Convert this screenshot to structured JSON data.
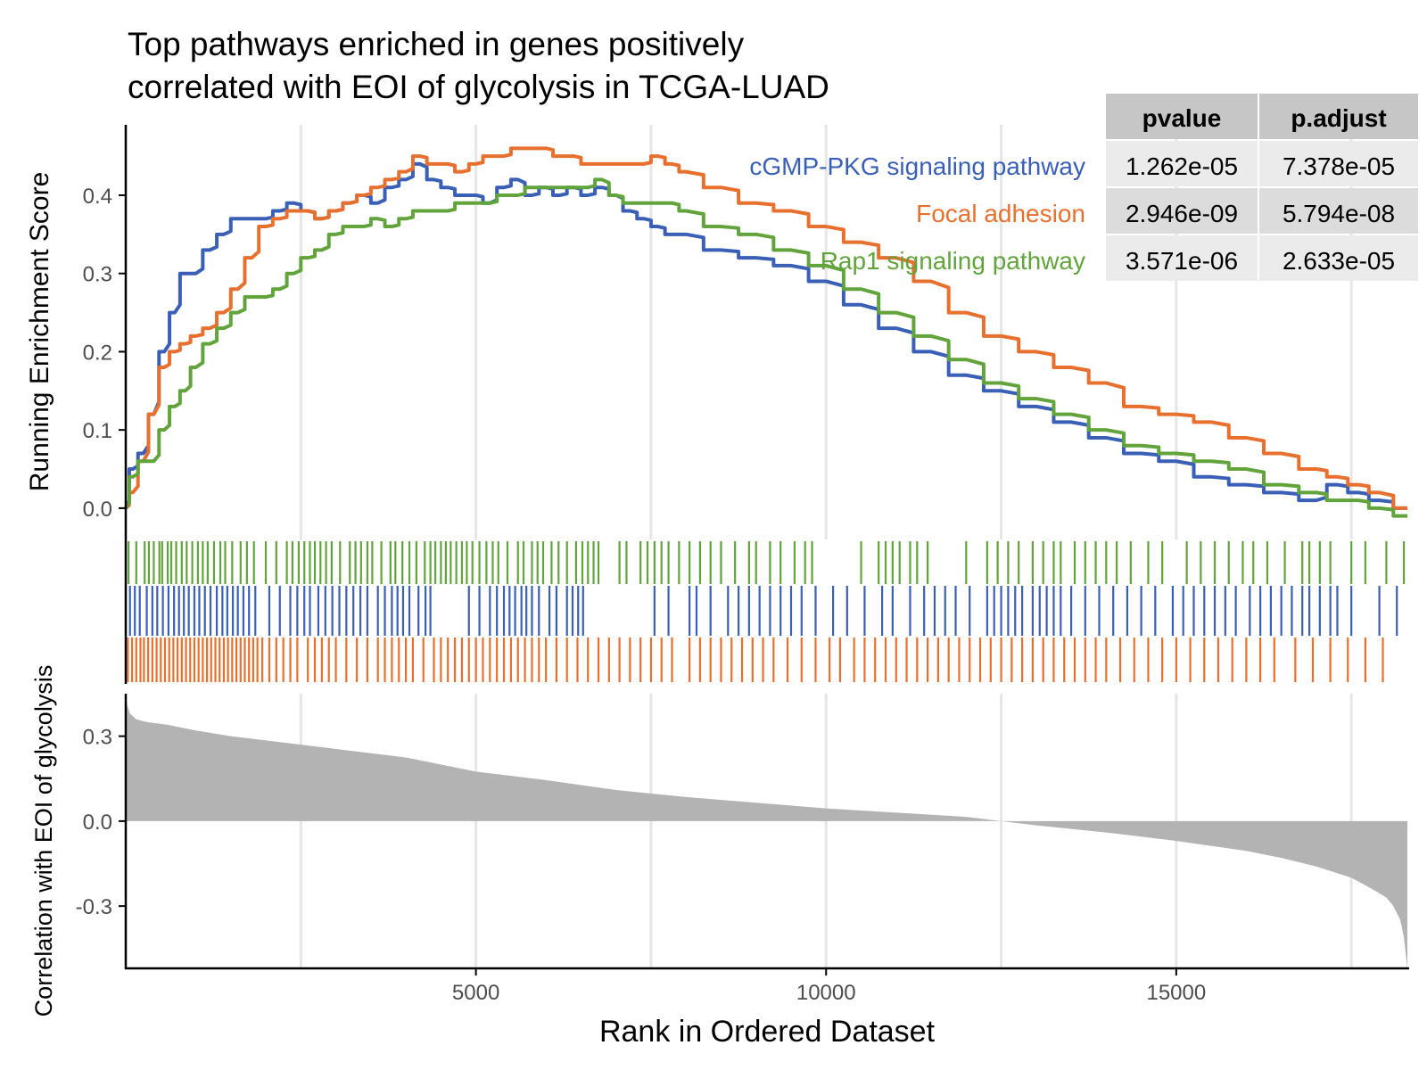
{
  "title_lines": [
    "Top pathways enriched in genes positively",
    "correlated with EOI of glycolysis in TCGA-LUAD"
  ],
  "colors": {
    "cGMP-PKG signaling pathway": "#3a5fb7",
    "Focal adhesion": "#e8702f",
    "Rap1 signaling pathway": "#62a43c",
    "ranked_fill": "#b3b3b3",
    "grid": "#e6e6e6"
  },
  "table": {
    "headers": [
      "pvalue",
      "p.adjust"
    ],
    "rows": [
      {
        "pathway": "cGMP-PKG signaling pathway",
        "pvalue": "1.262e-05",
        "p.adjust": "7.378e-05"
      },
      {
        "pathway": "Focal adhesion",
        "pvalue": "2.946e-09",
        "p.adjust": "5.794e-08"
      },
      {
        "pathway": "Rap1 signaling pathway",
        "pvalue": "3.571e-06",
        "p.adjust": "2.633e-05"
      }
    ]
  },
  "chart_data": [
    {
      "type": "line",
      "ylabel": "Running Enrichment Score",
      "xlim": [
        0,
        18300
      ],
      "ylim": [
        -0.04,
        0.49
      ],
      "y_ticks": [
        "0.0",
        "0.1",
        "0.2",
        "0.3",
        "0.4"
      ],
      "grid": "vertical",
      "series": [
        {
          "name": "cGMP-PKG signaling pathway",
          "x": [
            0,
            100,
            250,
            400,
            550,
            700,
            850,
            1000,
            1200,
            1400,
            1600,
            1800,
            2000,
            2200,
            2400,
            2600,
            2800,
            3000,
            3200,
            3400,
            3600,
            3800,
            4000,
            4200,
            4400,
            4600,
            4800,
            5000,
            5200,
            5400,
            5600,
            5800,
            6000,
            6200,
            6400,
            6600,
            6800,
            7000,
            7200,
            7400,
            7600,
            7800,
            8000,
            8500,
            9000,
            9500,
            10000,
            10500,
            11000,
            11500,
            12000,
            12500,
            13000,
            13500,
            14000,
            14500,
            15000,
            15500,
            16000,
            16500,
            17000,
            17300,
            17600,
            17900,
            18300
          ],
          "y": [
            0.0,
            0.05,
            0.07,
            0.12,
            0.2,
            0.25,
            0.3,
            0.3,
            0.33,
            0.35,
            0.37,
            0.37,
            0.37,
            0.38,
            0.39,
            0.38,
            0.37,
            0.38,
            0.39,
            0.4,
            0.39,
            0.41,
            0.42,
            0.44,
            0.42,
            0.41,
            0.4,
            0.4,
            0.39,
            0.41,
            0.42,
            0.4,
            0.41,
            0.4,
            0.41,
            0.4,
            0.41,
            0.4,
            0.38,
            0.37,
            0.36,
            0.35,
            0.35,
            0.33,
            0.32,
            0.31,
            0.29,
            0.26,
            0.23,
            0.2,
            0.17,
            0.15,
            0.13,
            0.11,
            0.09,
            0.07,
            0.06,
            0.04,
            0.03,
            0.02,
            0.01,
            0.03,
            0.02,
            0.01,
            0.0
          ]
        },
        {
          "name": "Focal adhesion",
          "x": [
            0,
            100,
            250,
            400,
            550,
            700,
            850,
            1000,
            1200,
            1400,
            1600,
            1800,
            2000,
            2200,
            2400,
            2600,
            2800,
            3000,
            3200,
            3400,
            3600,
            3800,
            4000,
            4200,
            4400,
            4600,
            4800,
            5000,
            5200,
            5400,
            5600,
            5800,
            6000,
            6200,
            6400,
            6600,
            6800,
            7000,
            7200,
            7400,
            7600,
            7800,
            8000,
            8500,
            9000,
            9500,
            10000,
            10500,
            11000,
            11500,
            12000,
            12500,
            13000,
            13500,
            14000,
            14500,
            15000,
            15500,
            16000,
            16500,
            17000,
            17300,
            17600,
            17900,
            18300
          ],
          "y": [
            0.0,
            0.02,
            0.06,
            0.12,
            0.18,
            0.2,
            0.21,
            0.22,
            0.23,
            0.25,
            0.28,
            0.32,
            0.36,
            0.37,
            0.38,
            0.38,
            0.37,
            0.38,
            0.39,
            0.4,
            0.41,
            0.42,
            0.43,
            0.45,
            0.44,
            0.44,
            0.43,
            0.44,
            0.45,
            0.45,
            0.46,
            0.46,
            0.46,
            0.45,
            0.45,
            0.44,
            0.44,
            0.44,
            0.44,
            0.44,
            0.45,
            0.44,
            0.43,
            0.41,
            0.39,
            0.38,
            0.36,
            0.34,
            0.32,
            0.29,
            0.25,
            0.22,
            0.2,
            0.18,
            0.16,
            0.13,
            0.12,
            0.11,
            0.09,
            0.07,
            0.05,
            0.04,
            0.03,
            0.02,
            0.0
          ]
        },
        {
          "name": "Rap1 signaling pathway",
          "x": [
            0,
            100,
            250,
            400,
            550,
            700,
            850,
            1000,
            1200,
            1400,
            1600,
            1800,
            2000,
            2200,
            2400,
            2600,
            2800,
            3000,
            3200,
            3400,
            3600,
            3800,
            4000,
            4200,
            4400,
            4600,
            4800,
            5000,
            5200,
            5400,
            5600,
            5800,
            6000,
            6200,
            6400,
            6600,
            6800,
            7000,
            7200,
            7400,
            7600,
            7800,
            8000,
            8500,
            9000,
            9500,
            10000,
            10500,
            11000,
            11500,
            12000,
            12500,
            13000,
            13500,
            14000,
            14500,
            15000,
            15500,
            16000,
            16500,
            17000,
            17300,
            17600,
            17900,
            18300
          ],
          "y": [
            0.0,
            0.04,
            0.06,
            0.06,
            0.1,
            0.13,
            0.15,
            0.18,
            0.21,
            0.23,
            0.25,
            0.27,
            0.27,
            0.28,
            0.3,
            0.32,
            0.33,
            0.35,
            0.36,
            0.36,
            0.37,
            0.36,
            0.37,
            0.38,
            0.38,
            0.38,
            0.39,
            0.39,
            0.39,
            0.4,
            0.4,
            0.41,
            0.41,
            0.41,
            0.41,
            0.41,
            0.42,
            0.4,
            0.39,
            0.39,
            0.39,
            0.39,
            0.38,
            0.36,
            0.35,
            0.33,
            0.31,
            0.28,
            0.25,
            0.22,
            0.19,
            0.16,
            0.14,
            0.12,
            0.1,
            0.08,
            0.07,
            0.06,
            0.05,
            0.03,
            0.02,
            0.01,
            0.01,
            0.0,
            -0.01
          ]
        }
      ]
    },
    {
      "type": "rug",
      "series": [
        {
          "name": "Rap1 signaling pathway",
          "x": [
            40,
            150,
            270,
            330,
            400,
            480,
            520,
            600,
            650,
            720,
            800,
            870,
            950,
            1030,
            1100,
            1170,
            1260,
            1350,
            1420,
            1520,
            1640,
            1730,
            1830,
            2000,
            2150,
            2300,
            2380,
            2470,
            2550,
            2630,
            2700,
            2780,
            2860,
            2940,
            3060,
            3200,
            3280,
            3360,
            3450,
            3520,
            3650,
            3780,
            3850,
            3950,
            4050,
            4150,
            4270,
            4350,
            4420,
            4500,
            4570,
            4640,
            4720,
            4800,
            4870,
            4950,
            5050,
            5150,
            5240,
            5320,
            5450,
            5600,
            5680,
            5800,
            5880,
            5960,
            6080,
            6180,
            6300,
            6430,
            6520,
            6600,
            6680,
            6750,
            7050,
            7150,
            7350,
            7450,
            7550,
            7650,
            7750,
            7900,
            8050,
            8200,
            8350,
            8500,
            8700,
            8900,
            9000,
            9200,
            9350,
            9550,
            9700,
            9800,
            10500,
            10750,
            10850,
            10950,
            11050,
            11200,
            11300,
            11450,
            12000,
            12300,
            12450,
            12600,
            12750,
            12950,
            13100,
            13250,
            13350,
            13550,
            13700,
            13850,
            14000,
            14150,
            14350,
            14600,
            14800,
            15150,
            15350,
            15550,
            15750,
            15950,
            16100,
            16300,
            16550,
            16800,
            16900,
            17050,
            17200,
            17500,
            17700,
            18000,
            18250
          ]
        },
        {
          "name": "cGMP-PKG signaling pathway",
          "x": [
            60,
            130,
            200,
            300,
            380,
            450,
            530,
            610,
            690,
            760,
            830,
            900,
            980,
            1050,
            1130,
            1210,
            1300,
            1380,
            1450,
            1530,
            1600,
            1680,
            1760,
            1850,
            2050,
            2200,
            2350,
            2450,
            2550,
            2630,
            2750,
            2850,
            2950,
            3050,
            3150,
            3250,
            3350,
            3450,
            3600,
            3700,
            3800,
            3880,
            3960,
            4050,
            4180,
            4280,
            4350,
            4900,
            5050,
            5200,
            5300,
            5400,
            5480,
            5560,
            5650,
            5720,
            5800,
            5900,
            6050,
            6150,
            6300,
            6380,
            6460,
            6530,
            7550,
            7750,
            8050,
            8150,
            8350,
            8600,
            8750,
            8900,
            9050,
            9200,
            9350,
            9500,
            9650,
            9850,
            10100,
            10300,
            10550,
            10800,
            10950,
            11200,
            11400,
            11550,
            11700,
            11850,
            12050,
            12300,
            12400,
            12500,
            12600,
            12700,
            12800,
            12950,
            13050,
            13150,
            13250,
            13350,
            13500,
            13700,
            13900,
            14100,
            14300,
            14500,
            14700,
            14950,
            15100,
            15250,
            15400,
            15550,
            15700,
            15850,
            16050,
            16200,
            16350,
            16500,
            16650,
            16800,
            16900,
            17050,
            17200,
            17300,
            17500,
            17900,
            18150
          ]
        },
        {
          "name": "Focal adhesion",
          "x": [
            30,
            90,
            150,
            210,
            260,
            320,
            380,
            440,
            500,
            560,
            620,
            680,
            740,
            800,
            860,
            920,
            980,
            1040,
            1100,
            1160,
            1220,
            1280,
            1340,
            1400,
            1460,
            1520,
            1580,
            1640,
            1700,
            1760,
            1820,
            1880,
            1950,
            2050,
            2150,
            2250,
            2350,
            2450,
            2600,
            2700,
            2800,
            2900,
            3000,
            3150,
            3300,
            3450,
            3600,
            3700,
            3800,
            3900,
            4000,
            4100,
            4250,
            4400,
            4500,
            4600,
            4700,
            4800,
            4900,
            5000,
            5100,
            5200,
            5300,
            5400,
            5500,
            5600,
            5700,
            5800,
            5900,
            6000,
            6150,
            6300,
            6450,
            6600,
            6750,
            6900,
            7050,
            7200,
            7350,
            7500,
            7650,
            7800,
            8050,
            8200,
            8350,
            8500,
            8650,
            8800,
            8950,
            9100,
            9250,
            9450,
            9650,
            9850,
            10050,
            10200,
            10400,
            10550,
            10700,
            10850,
            11000,
            11150,
            11300,
            11450,
            11600,
            11750,
            11900,
            12050,
            12200,
            12350,
            12500,
            12650,
            12800,
            12950,
            13100,
            13250,
            13400,
            13550,
            13700,
            13850,
            14000,
            14200,
            14400,
            14600,
            14800,
            15000,
            15200,
            15400,
            15600,
            15800,
            16000,
            16200,
            16400,
            16700,
            16950,
            17200,
            17450,
            17700,
            17950
          ]
        }
      ]
    },
    {
      "type": "area",
      "ylabel": "Correlation with EOI of glycolysis",
      "xlabel": "Rank in Ordered Dataset",
      "xlim": [
        0,
        18300
      ],
      "ylim": [
        -0.52,
        0.45
      ],
      "y_ticks": [
        "-0.3",
        "0.0",
        "0.3"
      ],
      "x_ticks": [
        "5000",
        "10000",
        "15000"
      ],
      "x_tick_values": [
        5000,
        10000,
        15000
      ],
      "x_grid": [
        2500,
        5000,
        7500,
        10000,
        12500,
        15000,
        17500
      ],
      "x": [
        0,
        20,
        60,
        150,
        300,
        600,
        1000,
        1500,
        2000,
        3000,
        4000,
        5000,
        6000,
        7000,
        8000,
        9000,
        10000,
        11000,
        12000,
        12500,
        13000,
        14000,
        15000,
        16000,
        16500,
        17000,
        17500,
        17800,
        18000,
        18100,
        18200,
        18250,
        18300
      ],
      "y": [
        0.44,
        0.41,
        0.38,
        0.36,
        0.35,
        0.34,
        0.32,
        0.3,
        0.285,
        0.255,
        0.225,
        0.175,
        0.145,
        0.11,
        0.085,
        0.065,
        0.045,
        0.03,
        0.015,
        0.0,
        -0.015,
        -0.04,
        -0.07,
        -0.105,
        -0.13,
        -0.16,
        -0.2,
        -0.24,
        -0.27,
        -0.3,
        -0.35,
        -0.41,
        -0.52
      ]
    }
  ]
}
